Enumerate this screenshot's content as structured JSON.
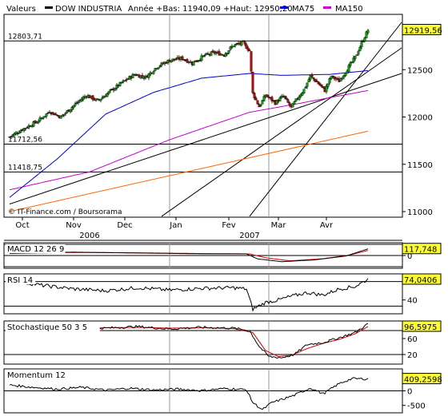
{
  "header": {
    "valeurs_label": "Valeurs",
    "instrument": "DOW INDUSTRIA",
    "range_text": "Année +Bas: 11940,09 +Haut: 12950,20",
    "ma75_label": "MA75",
    "ma150_label": "MA150"
  },
  "colors": {
    "ma75": "#0000cc",
    "ma150": "#cc00cc",
    "trend_orange": "#ff6600",
    "candle_up": "#00aa00",
    "candle_down": "#cc0000",
    "value_box": "#ffff33",
    "osc_line": "#000000",
    "osc_signal": "#cc0000"
  },
  "source_text": "© IT-Finance.com / Boursorama",
  "chart_data": {
    "type": "candlestick",
    "x_months": [
      "Oct",
      "Nov",
      "Dec",
      "Jan",
      "Fev",
      "Mar",
      "Avr"
    ],
    "x_years": [
      "2006",
      "2007"
    ],
    "ylim": [
      11000,
      13000
    ],
    "y_ticks": [
      11000,
      11500,
      12000,
      12500,
      12919.56
    ],
    "y_tick_labels": [
      "11000",
      "11500",
      "12000",
      "12500",
      "12919,56"
    ],
    "last_value_label": "12919,56",
    "support_levels": [
      {
        "label": "12803,71",
        "value": 12803.71
      },
      {
        "label": "11712,56",
        "value": 11712.56
      },
      {
        "label": "11418,75",
        "value": 11418.75
      }
    ],
    "close_anchors": [
      [
        0,
        11790
      ],
      [
        8,
        11870
      ],
      [
        18,
        11960
      ],
      [
        25,
        12060
      ],
      [
        32,
        12000
      ],
      [
        40,
        12120
      ],
      [
        48,
        12230
      ],
      [
        55,
        12170
      ],
      [
        62,
        12260
      ],
      [
        70,
        12360
      ],
      [
        78,
        12450
      ],
      [
        85,
        12420
      ],
      [
        92,
        12530
      ],
      [
        100,
        12600
      ],
      [
        108,
        12620
      ],
      [
        114,
        12570
      ],
      [
        122,
        12650
      ],
      [
        128,
        12680
      ],
      [
        134,
        12660
      ],
      [
        140,
        12760
      ],
      [
        146,
        12780
      ],
      [
        150,
        12700
      ],
      [
        152,
        12250
      ],
      [
        156,
        12110
      ],
      [
        160,
        12230
      ],
      [
        166,
        12150
      ],
      [
        171,
        12220
      ],
      [
        176,
        12100
      ],
      [
        180,
        12200
      ],
      [
        184,
        12290
      ],
      [
        188,
        12430
      ],
      [
        192,
        12370
      ],
      [
        197,
        12280
      ],
      [
        201,
        12430
      ],
      [
        206,
        12380
      ],
      [
        212,
        12530
      ],
      [
        216,
        12630
      ],
      [
        220,
        12780
      ],
      [
        224,
        12920
      ]
    ],
    "ma75_anchors": [
      [
        0,
        11150
      ],
      [
        30,
        11560
      ],
      [
        60,
        12030
      ],
      [
        90,
        12260
      ],
      [
        120,
        12410
      ],
      [
        150,
        12460
      ],
      [
        170,
        12440
      ],
      [
        200,
        12450
      ],
      [
        224,
        12490
      ]
    ],
    "ma150_anchors": [
      [
        0,
        11230
      ],
      [
        50,
        11420
      ],
      [
        100,
        11760
      ],
      [
        150,
        12050
      ],
      [
        180,
        12140
      ],
      [
        224,
        12280
      ]
    ],
    "trend_lines": [
      {
        "name": "support-1",
        "color": "#000000",
        "from": [
          0,
          11080
        ],
        "to": [
          245,
          12460
        ]
      },
      {
        "name": "support-2",
        "color": "#000000",
        "from": [
          95,
          10950
        ],
        "to": [
          245,
          12730
        ]
      },
      {
        "name": "support-3",
        "color": "#000000",
        "from": [
          150,
          10950
        ],
        "to": [
          245,
          13000
        ]
      },
      {
        "name": "long-trend",
        "color": "#ff6600",
        "from": [
          0,
          11000
        ],
        "to": [
          224,
          11850
        ]
      }
    ],
    "bar_count": 225,
    "vertical_markers": [
      {
        "name": "year-2007",
        "bar": 100
      },
      {
        "name": "mar-divider",
        "bar": 162
      }
    ],
    "oscillators": [
      {
        "name": "MACD 12 26 9",
        "value_label": "117,748",
        "ylim": [
          -200,
          200
        ],
        "y_tick_labels": [
          "0"
        ],
        "y_ticks": [
          0
        ],
        "ref_lines": [
          200,
          0,
          -200
        ],
        "line_anchors": [
          [
            0,
            40
          ],
          [
            40,
            60
          ],
          [
            80,
            45
          ],
          [
            120,
            30
          ],
          [
            148,
            30
          ],
          [
            155,
            -60
          ],
          [
            170,
            -110
          ],
          [
            190,
            -80
          ],
          [
            210,
            -10
          ],
          [
            224,
            118
          ]
        ],
        "signal_anchors": [
          [
            0,
            38
          ],
          [
            40,
            55
          ],
          [
            80,
            48
          ],
          [
            120,
            35
          ],
          [
            150,
            28
          ],
          [
            160,
            -40
          ],
          [
            175,
            -95
          ],
          [
            195,
            -60
          ],
          [
            212,
            5
          ],
          [
            224,
            90
          ]
        ]
      },
      {
        "name": "RSI 14",
        "value_label": "74,0406",
        "ylim": [
          20,
          80
        ],
        "y_tick_labels": [
          "40"
        ],
        "y_ticks": [
          40
        ],
        "ref_lines": [
          70,
          30
        ],
        "line_anchors": [
          [
            0,
            72
          ],
          [
            20,
            64
          ],
          [
            40,
            58
          ],
          [
            60,
            55
          ],
          [
            80,
            60
          ],
          [
            100,
            56
          ],
          [
            120,
            59
          ],
          [
            140,
            60
          ],
          [
            148,
            58
          ],
          [
            152,
            25
          ],
          [
            160,
            36
          ],
          [
            168,
            40
          ],
          [
            176,
            46
          ],
          [
            186,
            52
          ],
          [
            196,
            48
          ],
          [
            206,
            58
          ],
          [
            216,
            62
          ],
          [
            224,
            74
          ]
        ]
      },
      {
        "name": "Stochastique 50 3 5",
        "value_label": "96,5975",
        "ylim": [
          0,
          100
        ],
        "y_tick_labels": [
          "60",
          "20"
        ],
        "y_ticks": [
          60,
          20
        ],
        "ref_lines": [
          80,
          20
        ],
        "line_anchors": [
          [
            0,
            85
          ],
          [
            20,
            82
          ],
          [
            40,
            88
          ],
          [
            60,
            86
          ],
          [
            80,
            90
          ],
          [
            100,
            84
          ],
          [
            120,
            88
          ],
          [
            140,
            86
          ],
          [
            150,
            80
          ],
          [
            156,
            40
          ],
          [
            162,
            15
          ],
          [
            170,
            12
          ],
          [
            178,
            20
          ],
          [
            186,
            45
          ],
          [
            196,
            50
          ],
          [
            206,
            62
          ],
          [
            216,
            75
          ],
          [
            224,
            97
          ]
        ],
        "signal_anchors": [
          [
            0,
            83
          ],
          [
            20,
            84
          ],
          [
            40,
            86
          ],
          [
            60,
            87
          ],
          [
            80,
            88
          ],
          [
            100,
            86
          ],
          [
            120,
            87
          ],
          [
            140,
            85
          ],
          [
            152,
            75
          ],
          [
            160,
            30
          ],
          [
            168,
            15
          ],
          [
            176,
            18
          ],
          [
            186,
            35
          ],
          [
            196,
            48
          ],
          [
            206,
            58
          ],
          [
            216,
            72
          ],
          [
            224,
            90
          ]
        ]
      },
      {
        "name": "Momentum 12",
        "value_label": "409,2598",
        "ylim": [
          -700,
          700
        ],
        "y_tick_labels": [
          "0",
          "-500"
        ],
        "y_ticks": [
          0,
          -500
        ],
        "ref_lines": [
          0
        ],
        "line_anchors": [
          [
            0,
            200
          ],
          [
            15,
            120
          ],
          [
            30,
            60
          ],
          [
            45,
            120
          ],
          [
            60,
            20
          ],
          [
            75,
            90
          ],
          [
            90,
            30
          ],
          [
            105,
            60
          ],
          [
            120,
            10
          ],
          [
            135,
            80
          ],
          [
            148,
            40
          ],
          [
            152,
            -400
          ],
          [
            158,
            -650
          ],
          [
            164,
            -400
          ],
          [
            170,
            -300
          ],
          [
            178,
            -150
          ],
          [
            188,
            100
          ],
          [
            196,
            -100
          ],
          [
            206,
            250
          ],
          [
            214,
            420
          ],
          [
            224,
            409
          ]
        ]
      }
    ]
  }
}
